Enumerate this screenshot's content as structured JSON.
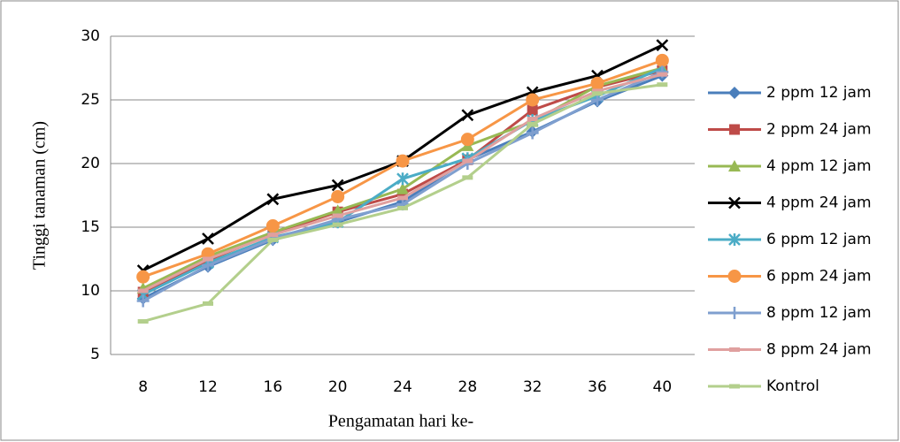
{
  "chart_data": {
    "type": "line",
    "x_label": "Pengamatan hari ke-",
    "y_label": "Tinggi tanaman (cm)",
    "categories": [
      "8",
      "12",
      "16",
      "20",
      "24",
      "28",
      "32",
      "36",
      "40"
    ],
    "ylim": [
      5,
      30
    ],
    "yticks": [
      5,
      10,
      15,
      20,
      25,
      30
    ],
    "grid": true,
    "legend": "right",
    "series": [
      {
        "name": "2 ppm 12 jam",
        "color": "#4a7ebb",
        "marker": "diamond",
        "values": [
          9.4,
          11.9,
          14.0,
          15.4,
          17.0,
          20.3,
          22.5,
          24.9,
          26.9
        ]
      },
      {
        "name": "2 ppm 24 jam",
        "color": "#be4b48",
        "marker": "square",
        "values": [
          9.9,
          12.4,
          14.5,
          16.2,
          17.6,
          20.3,
          24.2,
          26.0,
          27.3
        ]
      },
      {
        "name": "4 ppm 12 jam",
        "color": "#98b954",
        "marker": "triangle",
        "values": [
          10.2,
          12.7,
          14.6,
          16.3,
          18.0,
          21.4,
          23.3,
          26.1,
          27.5
        ]
      },
      {
        "name": "4 ppm 24 jam",
        "color": "#000000",
        "marker": "x",
        "values": [
          11.6,
          14.1,
          17.2,
          18.3,
          20.2,
          23.8,
          25.6,
          26.9,
          29.3
        ]
      },
      {
        "name": "6 ppm 12 jam",
        "color": "#4bacc6",
        "marker": "star",
        "values": [
          9.7,
          12.2,
          14.2,
          15.4,
          18.8,
          20.4,
          23.4,
          25.3,
          27.5
        ]
      },
      {
        "name": "6 ppm 24 jam",
        "color": "#f79646",
        "marker": "circle",
        "values": [
          11.1,
          12.9,
          15.1,
          17.4,
          20.2,
          21.9,
          25.0,
          26.3,
          28.1
        ]
      },
      {
        "name": "8 ppm 12 jam",
        "color": "#7f9fcf",
        "marker": "plus",
        "values": [
          9.2,
          12.0,
          14.1,
          15.6,
          16.8,
          20.0,
          22.4,
          25.0,
          27.2
        ]
      },
      {
        "name": "8 ppm 24 jam",
        "color": "#e0a09f",
        "marker": "dash",
        "values": [
          10.0,
          12.5,
          14.4,
          15.9,
          17.3,
          20.2,
          23.5,
          25.7,
          27.0
        ]
      },
      {
        "name": "Kontrol",
        "color": "#b3cf8c",
        "marker": "dash",
        "values": [
          7.6,
          9.0,
          14.0,
          15.2,
          16.5,
          18.9,
          23.1,
          25.5,
          26.2
        ]
      }
    ]
  }
}
